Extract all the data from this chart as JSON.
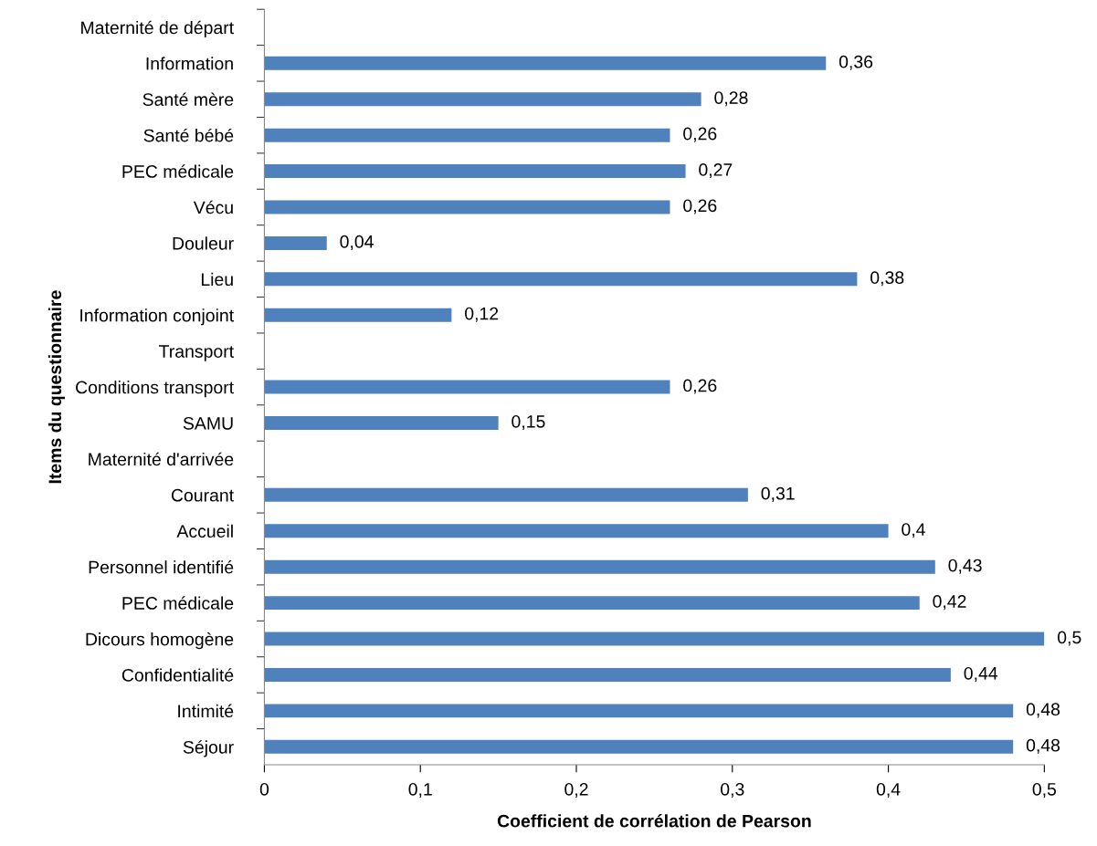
{
  "chart_data": {
    "type": "bar",
    "orientation": "horizontal",
    "xlabel": "Coefficient de corrélation de Pearson",
    "ylabel": "Items du questionnaire",
    "categories": [
      "Maternité de départ",
      "Information",
      "Santé mère",
      "Santé bébé",
      "PEC médicale",
      "Vécu",
      "Douleur",
      "Lieu",
      "Information conjoint",
      "Transport",
      "Conditions transport",
      "SAMU",
      "Maternité d'arrivée",
      "Courant",
      "Accueil",
      "Personnel identifié",
      "PEC médicale",
      "Dicours homogène",
      "Confidentialité",
      "Intimité",
      "Séjour"
    ],
    "values": [
      null,
      0.36,
      0.28,
      0.26,
      0.27,
      0.26,
      0.04,
      0.38,
      0.12,
      null,
      0.26,
      0.15,
      null,
      0.31,
      0.4,
      0.43,
      0.42,
      0.5,
      0.44,
      0.48,
      0.48
    ],
    "value_labels": [
      null,
      "0,36",
      "0,28",
      "0,26",
      "0,27",
      "0,26",
      "0,04",
      "0,38",
      "0,12",
      null,
      "0,26",
      "0,15",
      null,
      "0,31",
      "0,4",
      "0,43",
      "0,42",
      "0,5",
      "0,44",
      "0,48",
      "0,48"
    ],
    "color": "#4f81bd",
    "xlim": [
      0,
      0.5
    ],
    "xticks": [
      0,
      {
        "value": 0.1,
        "label": "0,1"
      },
      {
        "value": 0.2,
        "label": "0,2"
      },
      {
        "value": 0.3,
        "label": "0,3"
      },
      {
        "value": 0.4,
        "label": "0,4"
      },
      {
        "value": 0.5,
        "label": "0,5"
      }
    ],
    "grid": false,
    "legend": false
  }
}
